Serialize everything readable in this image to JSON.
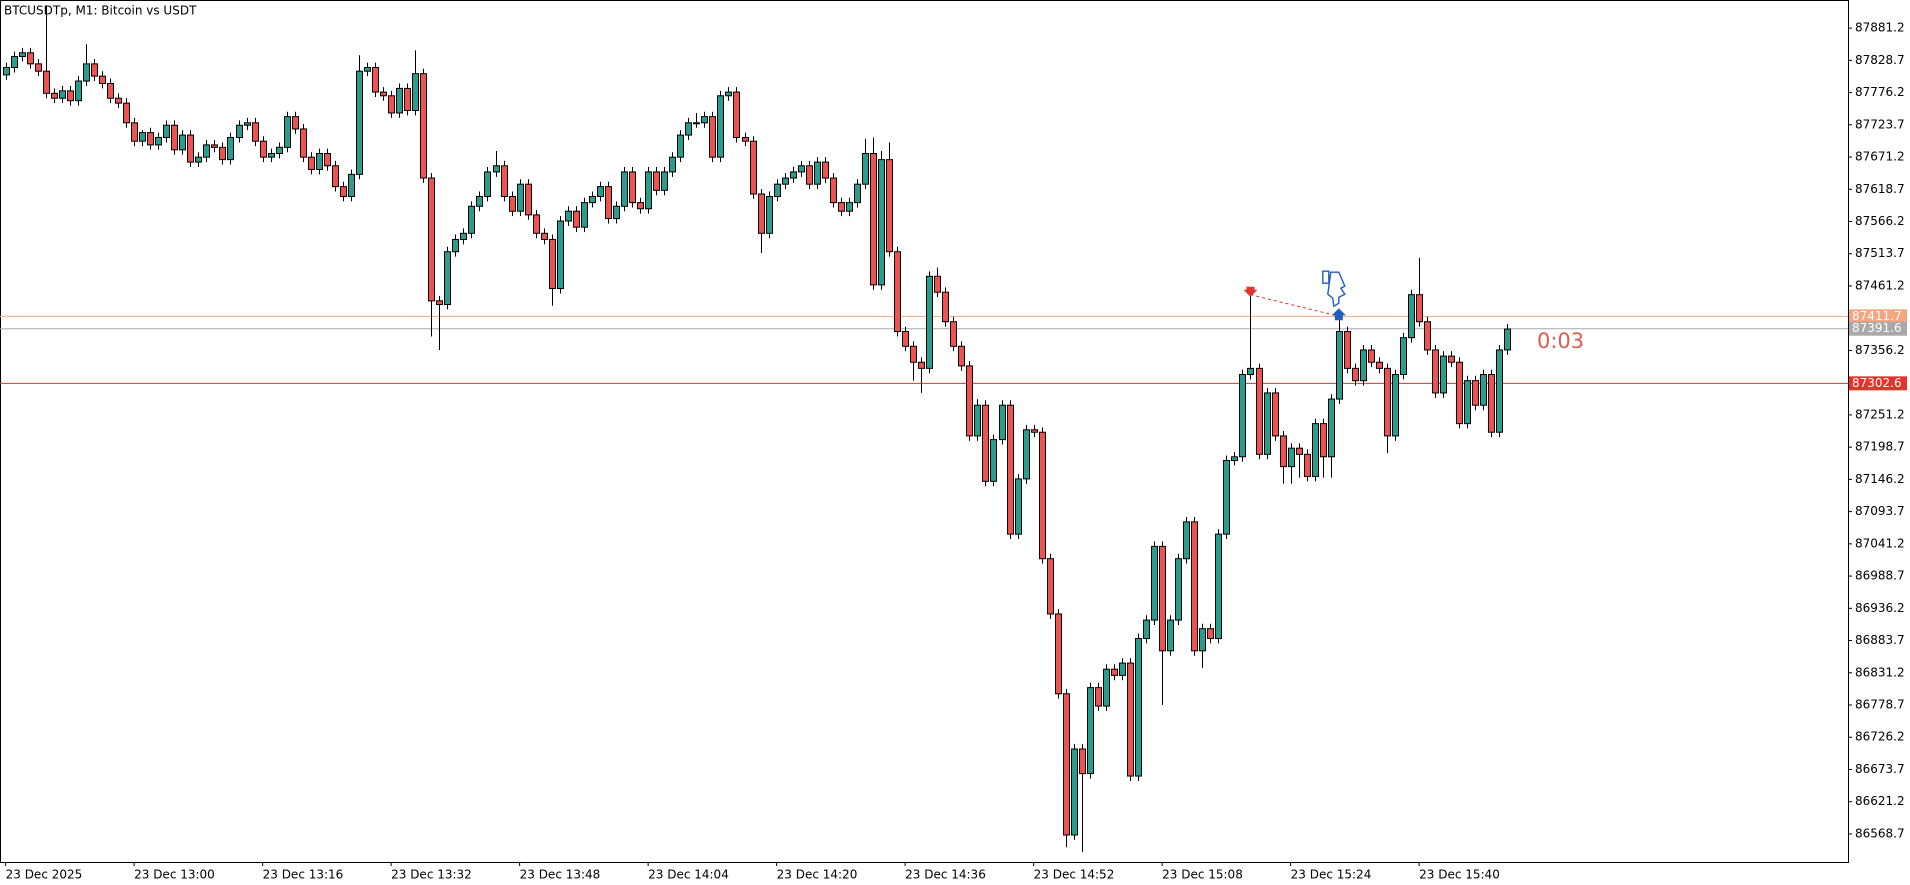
{
  "chart_data": {
    "type": "candlestick",
    "title": "BTCUSDTp, M1:  Bitcoin vs USDT",
    "timer": "0:03",
    "up_color": "#2a9d8f",
    "down_color": "#ef5350",
    "xlim": [
      -0.7,
      229.4
    ],
    "xticks": [
      {
        "value": 0,
        "label": "23 Dec 2025"
      },
      {
        "value": 16,
        "label": "23 Dec 13:00"
      },
      {
        "value": 32,
        "label": "23 Dec 13:16"
      },
      {
        "value": 48,
        "label": "23 Dec 13:32"
      },
      {
        "value": 64,
        "label": "23 Dec 13:48"
      },
      {
        "value": 80,
        "label": "23 Dec 14:04"
      },
      {
        "value": 96,
        "label": "23 Dec 14:20"
      },
      {
        "value": 112,
        "label": "23 Dec 14:36"
      },
      {
        "value": 128,
        "label": "23 Dec 14:52"
      },
      {
        "value": 144,
        "label": "23 Dec 15:08"
      },
      {
        "value": 160,
        "label": "23 Dec 15:24"
      },
      {
        "value": 176,
        "label": "23 Dec 15:40"
      }
    ],
    "ylim": [
      86523,
      87927
    ],
    "yticks": [
      87881.2,
      87828.7,
      87776.2,
      87723.7,
      87671.2,
      87618.7,
      87566.2,
      87513.7,
      87461.2,
      87356.2,
      87251.2,
      87198.7,
      87146.2,
      87093.7,
      87041.2,
      86988.7,
      86936.2,
      86883.7,
      86831.2,
      86778.7,
      86726.2,
      86673.7,
      86621.2,
      86568.7
    ],
    "price_lines": [
      {
        "value": 87411.7,
        "color": "#f4a582"
      },
      {
        "value": 87391.6,
        "color": "#a9a9a9"
      },
      {
        "value": 87302.6,
        "color": "#e8312a"
      }
    ],
    "trade": {
      "open_index": 155,
      "open_price": 87447,
      "close_index": 166,
      "close_price": 87412
    },
    "open": [
      87805,
      87817,
      87835,
      87841,
      87823,
      87811,
      87775,
      87767,
      87779,
      87763,
      87795,
      87823,
      87803,
      87791,
      87767,
      87759,
      87727,
      87697,
      87711,
      87691,
      87703,
      87723,
      87683,
      87707,
      87663,
      87671,
      87691,
      87687,
      87667,
      87703,
      87723,
      87727,
      87697,
      87671,
      87677,
      87687,
      87737,
      87717,
      87671,
      87651,
      87677,
      87657,
      87623,
      87607,
      87643,
      87811,
      87817,
      87777,
      87771,
      87743,
      87783,
      87747,
      87807,
      87637,
      87437,
      87431,
      87517,
      87537,
      87547,
      87591,
      87607,
      87647,
      87657,
      87607,
      87583,
      87627,
      87577,
      87547,
      87537,
      87457,
      87567,
      87583,
      87557,
      87597,
      87607,
      87623,
      87571,
      87591,
      87647,
      87597,
      87587,
      87647,
      87617,
      87647,
      87671,
      87707,
      87727,
      87727,
      87737,
      87671,
      87771,
      87777,
      87703,
      87697,
      87611,
      87547,
      87607,
      87627,
      87637,
      87647,
      87657,
      87627,
      87663,
      87637,
      87597,
      87583,
      87597,
      87627,
      87677,
      87463,
      87667,
      87517,
      87387,
      87363,
      87337,
      87327,
      87477,
      87451,
      87403,
      87363,
      87331,
      87217,
      87267,
      87143,
      87211,
      87267,
      87057,
      87147,
      87227,
      87223,
      87017,
      86927,
      86797,
      86567,
      86707,
      86667,
      86807,
      86777,
      86837,
      86827,
      86847,
      86663,
      86887,
      86917,
      87037,
      86867,
      86917,
      87017,
      87077,
      86867,
      86903,
      86887,
      87057,
      87177,
      87183,
      87317,
      87327,
      87187,
      87287,
      87217,
      87167,
      87197,
      87187,
      87151,
      87237,
      87183,
      87277,
      87387,
      87327,
      87307,
      87357,
      87337,
      87327,
      87217,
      87317,
      87377,
      87447,
      87403,
      87357,
      87287,
      87347,
      87337,
      87237,
      87307,
      87267,
      87317,
      87223,
      87357
    ],
    "high": [
      87825,
      87843,
      87849,
      87849,
      87831,
      87917,
      87783,
      87787,
      87787,
      87803,
      87855,
      87831,
      87811,
      87799,
      87775,
      87767,
      87735,
      87715,
      87719,
      87711,
      87731,
      87731,
      87715,
      87715,
      87679,
      87699,
      87699,
      87695,
      87711,
      87731,
      87735,
      87735,
      87705,
      87685,
      87695,
      87745,
      87745,
      87725,
      87679,
      87685,
      87685,
      87665,
      87631,
      87651,
      87837,
      87825,
      87825,
      87785,
      87779,
      87791,
      87791,
      87845,
      87815,
      87645,
      87445,
      87525,
      87545,
      87555,
      87599,
      87615,
      87655,
      87681,
      87665,
      87615,
      87635,
      87635,
      87585,
      87555,
      87545,
      87575,
      87591,
      87591,
      87605,
      87615,
      87631,
      87631,
      87599,
      87655,
      87655,
      87605,
      87655,
      87655,
      87655,
      87679,
      87715,
      87735,
      87743,
      87745,
      87745,
      87779,
      87785,
      87785,
      87711,
      87705,
      87619,
      87615,
      87635,
      87645,
      87655,
      87665,
      87665,
      87671,
      87671,
      87645,
      87605,
      87605,
      87635,
      87701,
      87703,
      87681,
      87695,
      87525,
      87395,
      87371,
      87345,
      87485,
      87491,
      87459,
      87411,
      87371,
      87339,
      87277,
      87275,
      87219,
      87275,
      87275,
      87155,
      87235,
      87235,
      87231,
      87025,
      86935,
      86805,
      86715,
      86715,
      86815,
      86815,
      86845,
      86845,
      86855,
      86855,
      86895,
      86925,
      87045,
      87045,
      86925,
      87025,
      87085,
      87085,
      86911,
      86911,
      87065,
      87185,
      87191,
      87325,
      87447,
      87335,
      87295,
      87295,
      87225,
      87205,
      87205,
      87195,
      87245,
      87245,
      87285,
      87411,
      87395,
      87335,
      87365,
      87365,
      87345,
      87335,
      87325,
      87385,
      87455,
      87507,
      87411,
      87365,
      87355,
      87355,
      87345,
      87315,
      87315,
      87325,
      87325,
      87365,
      87399
    ],
    "low": [
      87797,
      87809,
      87827,
      87815,
      87803,
      87767,
      87759,
      87759,
      87755,
      87755,
      87787,
      87795,
      87783,
      87759,
      87751,
      87719,
      87689,
      87689,
      87683,
      87683,
      87695,
      87675,
      87675,
      87655,
      87655,
      87663,
      87679,
      87659,
      87659,
      87695,
      87715,
      87689,
      87663,
      87663,
      87669,
      87679,
      87709,
      87663,
      87643,
      87643,
      87649,
      87615,
      87599,
      87599,
      87635,
      87803,
      87769,
      87763,
      87735,
      87735,
      87739,
      87739,
      87629,
      87379,
      87357,
      87423,
      87509,
      87529,
      87539,
      87583,
      87599,
      87639,
      87599,
      87575,
      87575,
      87569,
      87539,
      87529,
      87429,
      87449,
      87559,
      87549,
      87549,
      87589,
      87599,
      87563,
      87563,
      87583,
      87589,
      87579,
      87579,
      87609,
      87609,
      87639,
      87663,
      87699,
      87719,
      87719,
      87663,
      87663,
      87763,
      87695,
      87689,
      87603,
      87515,
      87539,
      87599,
      87619,
      87629,
      87639,
      87619,
      87619,
      87629,
      87589,
      87575,
      87575,
      87589,
      87619,
      87455,
      87455,
      87509,
      87379,
      87355,
      87307,
      87287,
      87319,
      87443,
      87395,
      87355,
      87323,
      87209,
      87209,
      87135,
      87135,
      87203,
      87049,
      87049,
      87139,
      87215,
      87009,
      86919,
      86789,
      86547,
      86559,
      86539,
      86659,
      86769,
      86769,
      86819,
      86819,
      86655,
      86655,
      86879,
      86909,
      86779,
      86859,
      86909,
      87009,
      86859,
      86839,
      86879,
      86879,
      87049,
      87169,
      87175,
      87309,
      87179,
      87179,
      87209,
      87139,
      87139,
      87149,
      87143,
      87143,
      87149,
      87149,
      87269,
      87319,
      87299,
      87299,
      87329,
      87319,
      87189,
      87209,
      87309,
      87369,
      87395,
      87349,
      87279,
      87279,
      87329,
      87229,
      87229,
      87259,
      87259,
      87215,
      87215,
      87349
    ],
    "close": [
      87817,
      87835,
      87841,
      87823,
      87811,
      87775,
      87767,
      87779,
      87763,
      87795,
      87823,
      87803,
      87791,
      87767,
      87759,
      87727,
      87697,
      87711,
      87691,
      87703,
      87723,
      87683,
      87707,
      87663,
      87671,
      87691,
      87687,
      87667,
      87703,
      87723,
      87727,
      87697,
      87671,
      87677,
      87687,
      87737,
      87717,
      87671,
      87651,
      87677,
      87657,
      87623,
      87607,
      87643,
      87811,
      87817,
      87777,
      87771,
      87743,
      87783,
      87747,
      87807,
      87637,
      87437,
      87431,
      87517,
      87537,
      87547,
      87591,
      87607,
      87647,
      87657,
      87607,
      87583,
      87627,
      87577,
      87547,
      87537,
      87457,
      87567,
      87583,
      87557,
      87597,
      87607,
      87623,
      87571,
      87591,
      87647,
      87597,
      87587,
      87647,
      87617,
      87647,
      87671,
      87707,
      87727,
      87727,
      87737,
      87671,
      87771,
      87777,
      87703,
      87697,
      87611,
      87547,
      87607,
      87627,
      87637,
      87647,
      87657,
      87627,
      87663,
      87637,
      87597,
      87583,
      87597,
      87627,
      87677,
      87463,
      87667,
      87517,
      87387,
      87363,
      87337,
      87327,
      87477,
      87451,
      87403,
      87363,
      87331,
      87217,
      87267,
      87143,
      87211,
      87267,
      87057,
      87147,
      87227,
      87223,
      87017,
      86927,
      86797,
      86567,
      86707,
      86667,
      86807,
      86777,
      86837,
      86827,
      86847,
      86663,
      86887,
      86917,
      87037,
      86867,
      86917,
      87017,
      87077,
      86867,
      86903,
      86887,
      87057,
      87177,
      87183,
      87317,
      87327,
      87187,
      87287,
      87217,
      87167,
      87197,
      87187,
      87151,
      87237,
      87183,
      87277,
      87387,
      87327,
      87307,
      87357,
      87337,
      87327,
      87217,
      87317,
      87377,
      87447,
      87403,
      87357,
      87287,
      87347,
      87337,
      87237,
      87307,
      87267,
      87317,
      87223,
      87357,
      87391
    ]
  }
}
